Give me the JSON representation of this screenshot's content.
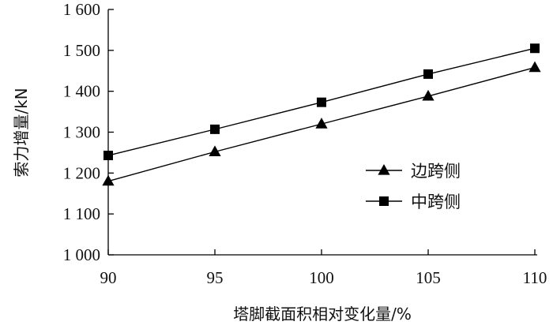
{
  "chart_data": {
    "type": "line",
    "title": "",
    "xlabel": "塔脚截面积相对变化量/%",
    "ylabel": "索力增量/kN",
    "x": [
      90,
      95,
      100,
      105,
      110
    ],
    "xticks": [
      90,
      95,
      100,
      105,
      110
    ],
    "xtick_labels": [
      "90",
      "95",
      "100",
      "105",
      "110"
    ],
    "yticks": [
      1000,
      1100,
      1200,
      1300,
      1400,
      1500,
      1600
    ],
    "ytick_labels": [
      "1 000",
      "1 100",
      "1 200",
      "1 300",
      "1 400",
      "1 500",
      "1 600"
    ],
    "xlim": [
      90,
      110
    ],
    "ylim": [
      1000,
      1600
    ],
    "grid": false,
    "legend_position": "center-right",
    "series": [
      {
        "name": "边跨侧",
        "marker": "triangle",
        "color": "#000000",
        "values": [
          1180,
          1252,
          1320,
          1388,
          1458
        ]
      },
      {
        "name": "中跨侧",
        "marker": "square",
        "color": "#000000",
        "values": [
          1243,
          1307,
          1373,
          1442,
          1505
        ]
      }
    ]
  }
}
